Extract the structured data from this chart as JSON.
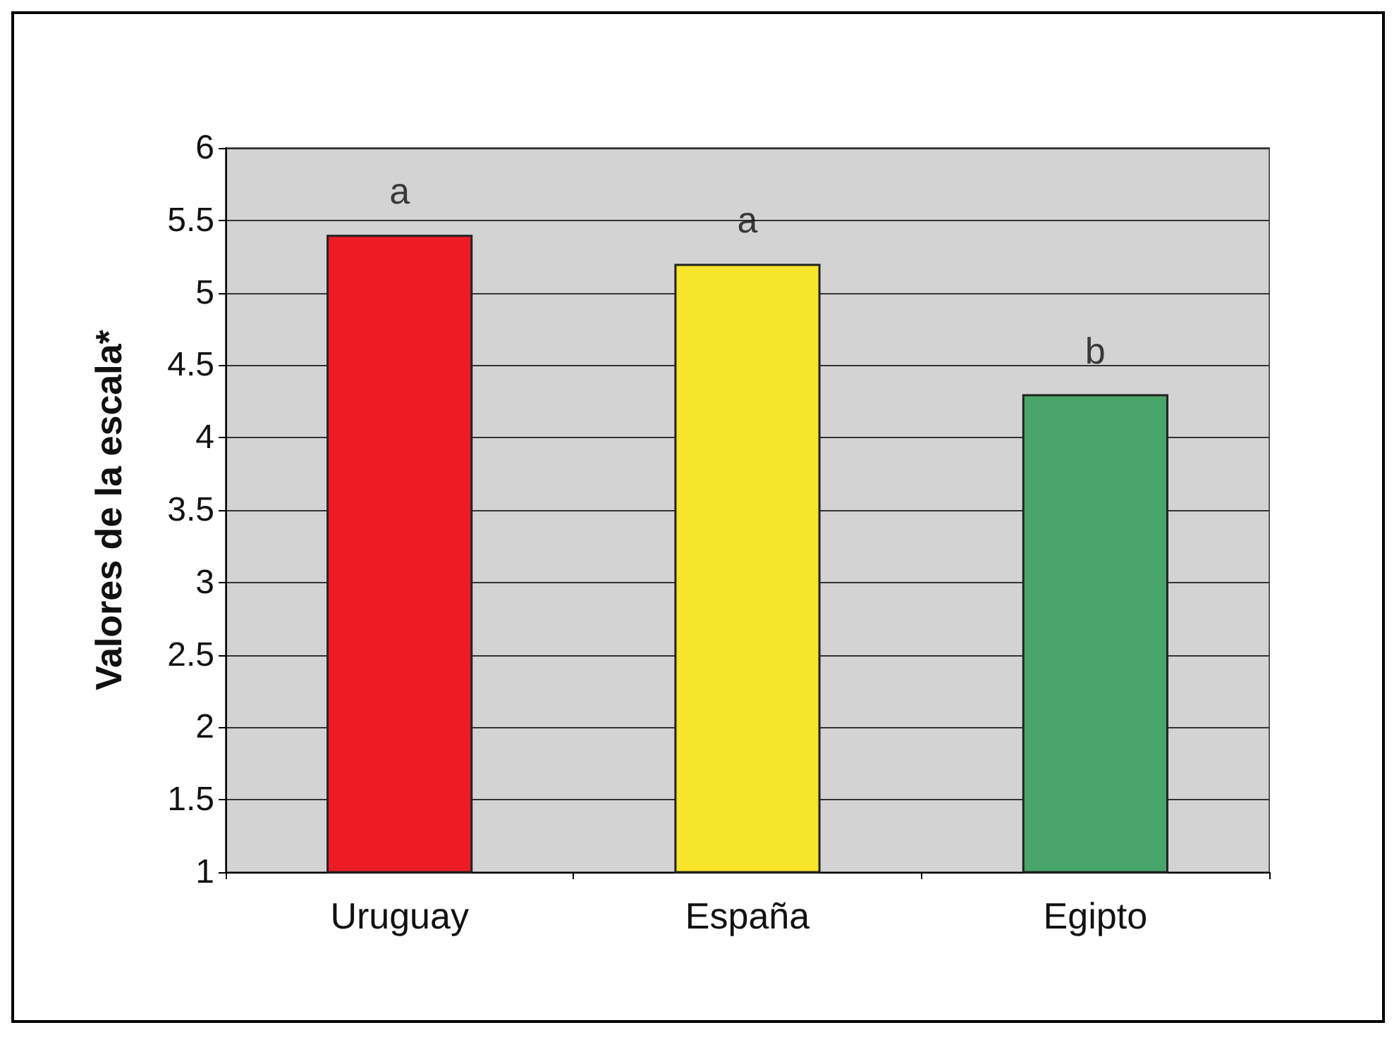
{
  "chart_data": {
    "type": "bar",
    "ylabel": "Valores de la escala*",
    "categories": [
      "Uruguay",
      "España",
      "Egipto"
    ],
    "values": [
      5.4,
      5.2,
      4.3
    ],
    "colors": [
      "#ed1c24",
      "#f7e52b",
      "#4aa56a"
    ],
    "ylim": [
      1,
      6
    ],
    "yticks": [
      1,
      1.5,
      2,
      2.5,
      3,
      3.5,
      4,
      4.5,
      5,
      5.5,
      6
    ],
    "grid": "y",
    "annotations": [
      {
        "text": "a",
        "x": "Uruguay",
        "y": 5.4
      },
      {
        "text": "a",
        "x": "España",
        "y": 5.2
      },
      {
        "text": "b",
        "x": "Egipto",
        "y": 4.3
      }
    ]
  }
}
